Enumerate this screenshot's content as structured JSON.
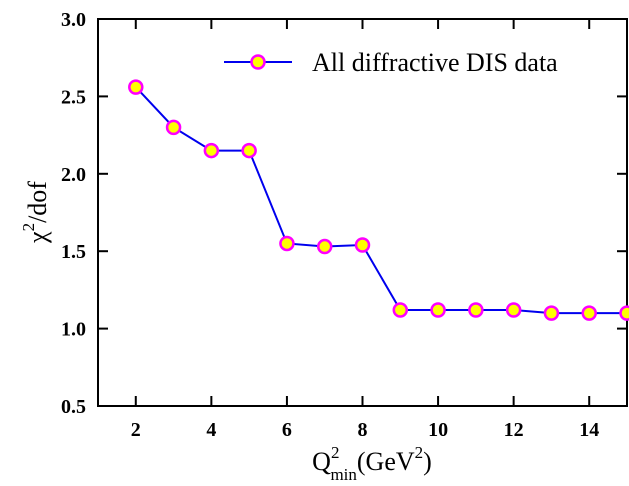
{
  "chart_data": {
    "type": "line",
    "x_label": [
      "Q",
      "2",
      "min",
      "(GeV",
      "2",
      ")"
    ],
    "y_label": [
      "χ",
      "2",
      "/dof"
    ],
    "x": [
      2,
      3,
      4,
      5,
      6,
      7,
      8,
      9,
      10,
      11,
      12,
      13,
      14,
      15
    ],
    "series": [
      {
        "name": "All diffractive DIS data",
        "color": "#0000ee",
        "marker_fill": "#ffff00",
        "marker_edge": "#ff00ff",
        "values": [
          2.56,
          2.3,
          2.15,
          2.15,
          1.55,
          1.53,
          1.54,
          1.12,
          1.12,
          1.12,
          1.12,
          1.1,
          1.1,
          1.1
        ]
      }
    ],
    "xlim": [
      1,
      15
    ],
    "xticks": [
      2,
      4,
      6,
      8,
      10,
      12,
      14
    ],
    "ylim": [
      0.5,
      3.0
    ],
    "yticks": [
      {
        "value": 0.5,
        "label": "0.5"
      },
      {
        "value": 1.0,
        "label": "1.0"
      },
      {
        "value": 1.5,
        "label": "1.5"
      },
      {
        "value": 2.0,
        "label": "2.0"
      },
      {
        "value": 2.5,
        "label": "2.5"
      },
      {
        "value": 3.0,
        "label": "3.0"
      }
    ],
    "legend": "top-right",
    "grid": false
  }
}
